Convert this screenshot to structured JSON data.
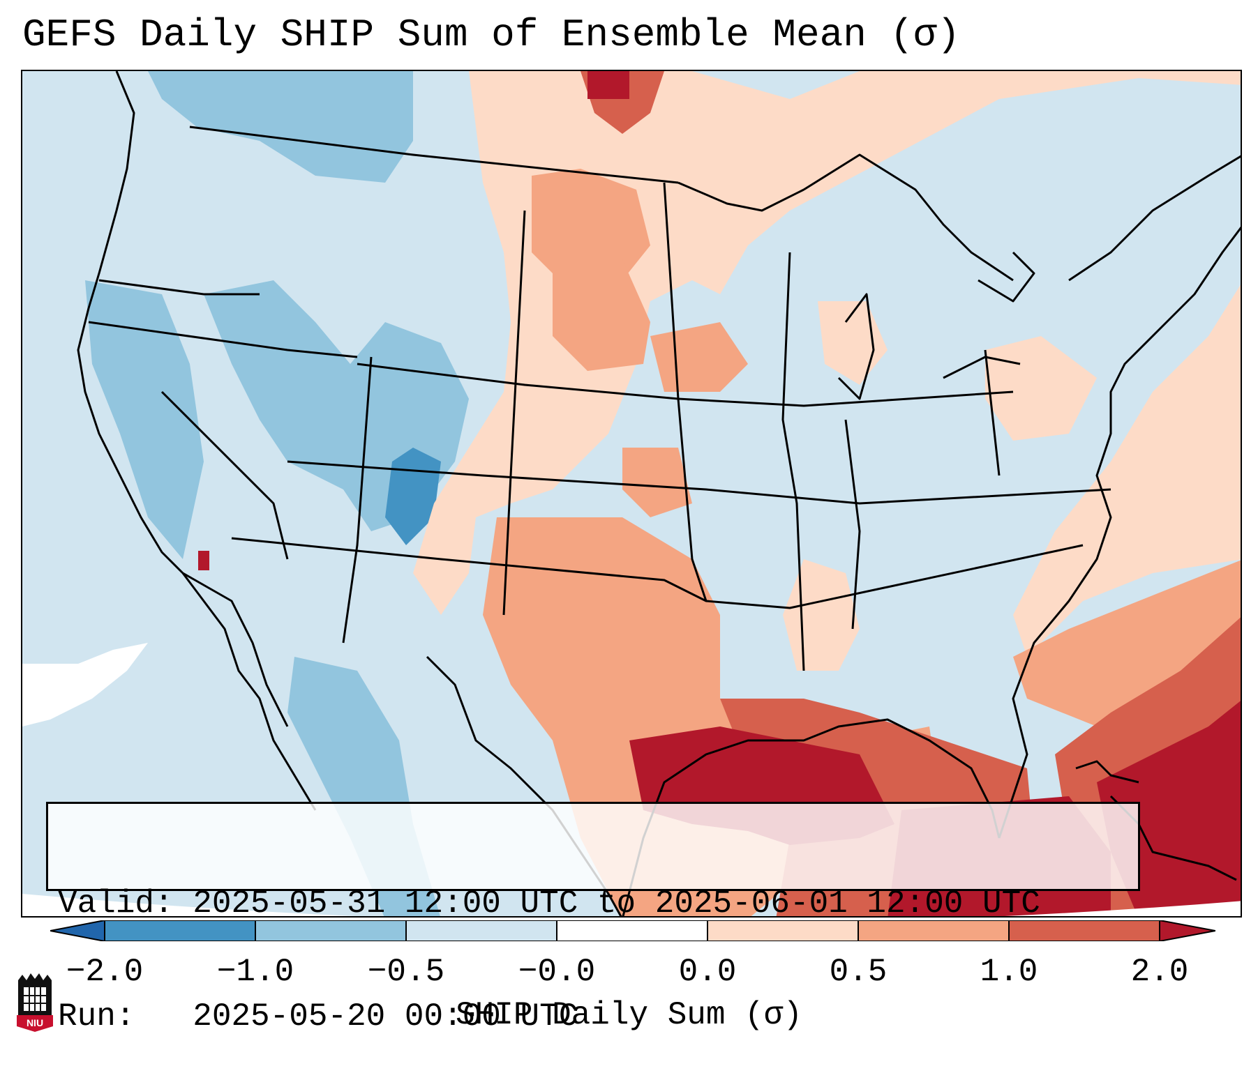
{
  "title": "GEFS Daily SHIP Sum of Ensemble Mean (σ)",
  "map": {
    "region": "CONUS",
    "ocean_color": "#d1e5f0",
    "color_scale": {
      "below_-2.0": "#2166ac",
      "-2.0_to_-1.0": "#4393c3",
      "-1.0_to_-0.5": "#92c5de",
      "-0.5_to_-0.0": "#d1e5f0",
      "-0.0_to_0.0": "#ffffff",
      "0.0_to_0.5": "#fddbc7",
      "0.5_to_1.0": "#f4a582",
      "1.0_to_2.0": "#d6604d",
      "above_2.0": "#b2182b"
    }
  },
  "info": {
    "valid_line": "Valid: 2025-05-31 12:00 UTC to 2025-06-01 12:00 UTC",
    "run_line": "Run:   2025-05-20 00:00 UTC"
  },
  "colorbar": {
    "ticks": [
      "−2.0",
      "−1.0",
      "−0.5",
      "−0.0",
      "0.0",
      "0.5",
      "1.0",
      "2.0"
    ],
    "label": "SHIP Daily Sum (σ)",
    "colors": [
      "#2166ac",
      "#4393c3",
      "#92c5de",
      "#d1e5f0",
      "#ffffff",
      "#fddbc7",
      "#f4a582",
      "#d6604d",
      "#b2182b"
    ]
  },
  "logo": {
    "text": "NIU",
    "color": "#c8102e"
  }
}
